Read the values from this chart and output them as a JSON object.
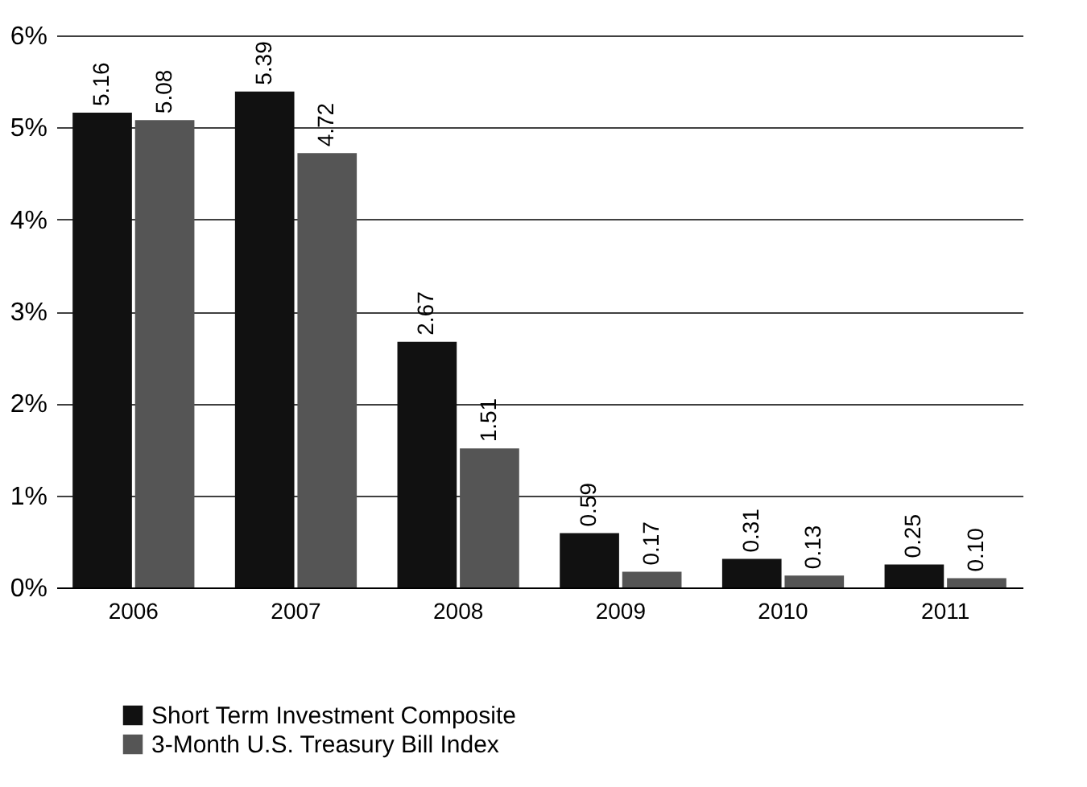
{
  "chart_data": {
    "type": "bar",
    "categories": [
      "2006",
      "2007",
      "2008",
      "2009",
      "2010",
      "2011"
    ],
    "series": [
      {
        "name": "Short Term Investment Composite",
        "color": "#111111",
        "values": [
          5.16,
          5.39,
          2.67,
          0.59,
          0.31,
          0.25
        ],
        "value_labels": [
          "5.16",
          "5.39",
          "2.67",
          "0.59",
          "0.31",
          "0.25"
        ]
      },
      {
        "name": "3-Month U.S. Treasury Bill Index",
        "color": "#555555",
        "values": [
          5.08,
          4.72,
          1.51,
          0.17,
          0.13,
          0.1
        ],
        "value_labels": [
          "5.08",
          "4.72",
          "1.51",
          "0.17",
          "0.13",
          "0.10"
        ]
      }
    ],
    "ylim": [
      0,
      6
    ],
    "yticks": [
      {
        "value": 0,
        "label": "0%"
      },
      {
        "value": 1,
        "label": "1%"
      },
      {
        "value": 2,
        "label": "2%"
      },
      {
        "value": 3,
        "label": "3%"
      },
      {
        "value": 4,
        "label": "4%"
      },
      {
        "value": 5,
        "label": "5%"
      },
      {
        "value": 6,
        "label": "6%"
      }
    ],
    "grid": "y",
    "legend": "bottom"
  }
}
